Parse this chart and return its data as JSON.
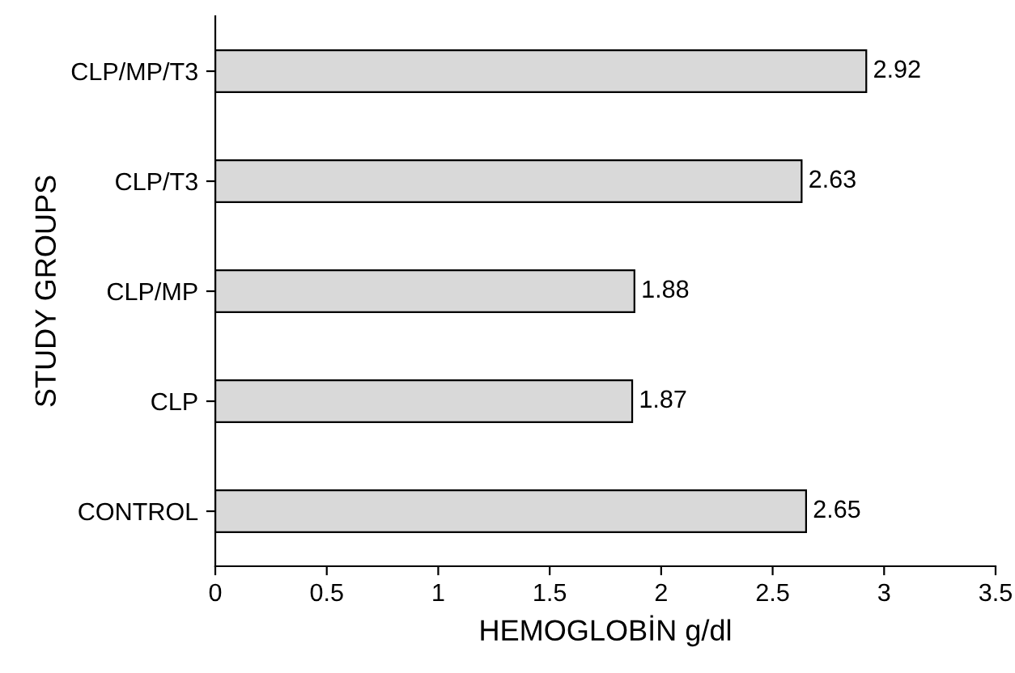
{
  "chart_data": {
    "type": "bar",
    "orientation": "horizontal",
    "xlabel": "HEMOGLOBİN g/dl",
    "ylabel": "STUDY GROUPS",
    "categories": [
      "CLP/MP/T3",
      "CLP/T3",
      "CLP/MP",
      "CLP",
      "CONTROL"
    ],
    "values": [
      2.92,
      2.63,
      1.88,
      1.87,
      2.65
    ],
    "color": "#d9d9d9",
    "xlim": [
      0,
      3.5
    ],
    "xticks": [
      0,
      0.5,
      1,
      1.5,
      2,
      2.5,
      3,
      3.5
    ],
    "grid": false,
    "data_labels": true,
    "legend": false
  }
}
